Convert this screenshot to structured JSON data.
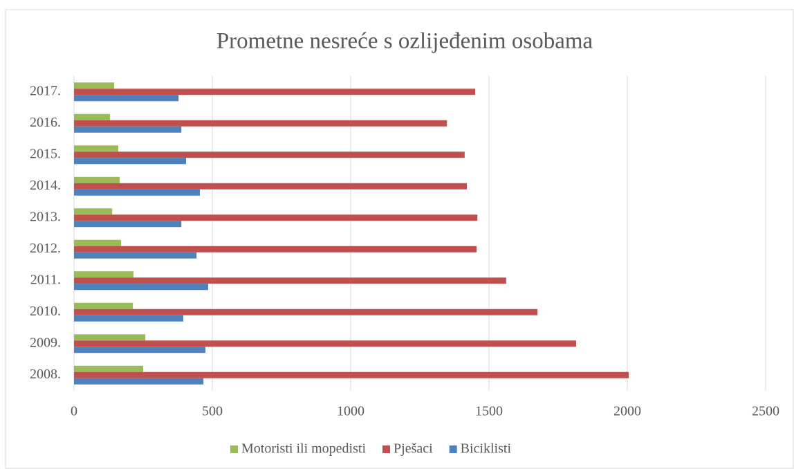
{
  "chart_data": {
    "type": "bar",
    "orientation": "horizontal",
    "title": "Prometne nesreće s ozlijeđenim osobama",
    "categories": [
      "2008.",
      "2009.",
      "2010.",
      "2011.",
      "2012.",
      "2013.",
      "2014.",
      "2015.",
      "2016.",
      "2017."
    ],
    "series": [
      {
        "name": "Motoristi ili mopedisti",
        "color": "#9bbb59",
        "values": [
          250,
          258,
          213,
          215,
          170,
          138,
          165,
          160,
          130,
          145
        ]
      },
      {
        "name": "Pješaci",
        "color": "#c0504d",
        "values": [
          2005,
          1815,
          1675,
          1562,
          1455,
          1458,
          1420,
          1412,
          1348,
          1450
        ]
      },
      {
        "name": "Biciklisti",
        "color": "#4f81bd",
        "values": [
          468,
          475,
          395,
          485,
          443,
          388,
          455,
          405,
          388,
          378
        ]
      }
    ],
    "xlim": [
      0,
      2500
    ],
    "xticks": [
      0,
      500,
      1000,
      1500,
      2000,
      2500
    ],
    "grid": true,
    "legend": "bottom"
  }
}
